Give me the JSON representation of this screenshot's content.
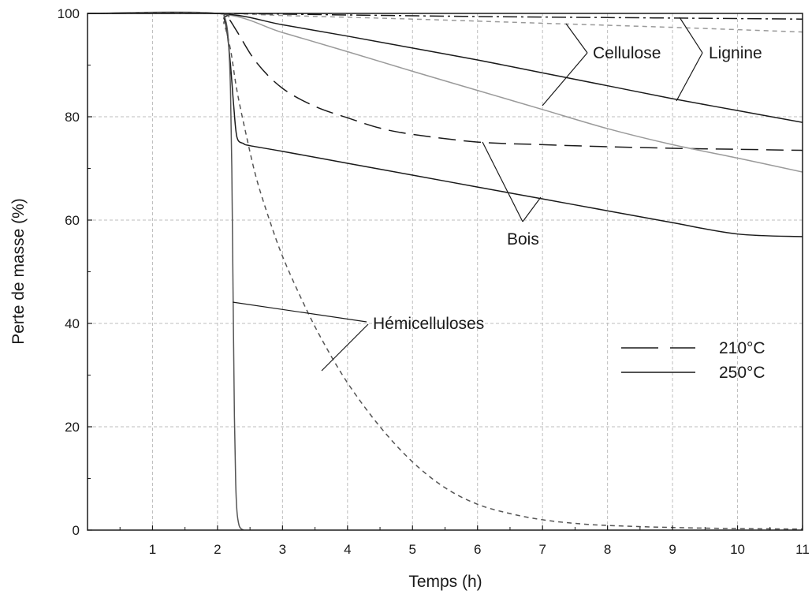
{
  "chart_data": {
    "type": "line",
    "title": "",
    "xlabel": "Temps (h)",
    "ylabel": "Perte de masse (%)",
    "xlim": [
      0,
      11
    ],
    "ylim": [
      0,
      100
    ],
    "xticks": [
      1,
      2,
      3,
      4,
      5,
      6,
      7,
      8,
      9,
      10,
      11
    ],
    "yticks": [
      0,
      20,
      40,
      60,
      80,
      100
    ],
    "grid": true,
    "legend": {
      "placement": "right",
      "entries": [
        {
          "label": "210°C",
          "style": "dashed"
        },
        {
          "label": "250°C",
          "style": "solid"
        }
      ]
    },
    "annotations": [
      "Cellulose",
      "Lignine",
      "Bois",
      "Hémicelluloses"
    ],
    "series": [
      {
        "group": "Bois",
        "temperature": "210°C",
        "color": "#1a1a1a",
        "dash": "long",
        "x": [
          0,
          2,
          2.15,
          2.3,
          2.6,
          3,
          3.5,
          4,
          4.5,
          5,
          6,
          7,
          8,
          9,
          10,
          11
        ],
        "y": [
          100,
          100,
          99.3,
          96.5,
          90.5,
          85.5,
          82,
          79.8,
          77.8,
          76.6,
          75.1,
          74.6,
          74.2,
          73.9,
          73.7,
          73.5
        ]
      },
      {
        "group": "Bois",
        "temperature": "250°C",
        "color": "#1a1a1a",
        "dash": "solid",
        "x": [
          0,
          2,
          2.1,
          2.15,
          2.2,
          2.25,
          2.3,
          2.4,
          2.5,
          3,
          4,
          5,
          6,
          7,
          8,
          9,
          10,
          11
        ],
        "y": [
          100,
          100,
          99,
          96,
          90,
          82,
          76,
          74.8,
          74.4,
          73.3,
          71,
          68.7,
          66.4,
          64.1,
          61.8,
          59.5,
          57.3,
          56.8
        ]
      },
      {
        "group": "Cellulose",
        "temperature": "210°C",
        "color": "#9a9a9a",
        "dash": "short",
        "x": [
          0,
          2,
          3,
          5,
          7,
          9,
          11
        ],
        "y": [
          100,
          100,
          99.6,
          98.9,
          98.1,
          97.3,
          96.4
        ]
      },
      {
        "group": "Cellulose",
        "temperature": "250°C",
        "color": "#9a9a9a",
        "dash": "solid",
        "x": [
          0,
          2,
          3,
          4,
          5,
          6,
          7,
          8,
          9,
          10,
          11
        ],
        "y": [
          100,
          100,
          96.3,
          92.6,
          88.8,
          85.1,
          81.4,
          77.7,
          74.6,
          72,
          69.3
        ]
      },
      {
        "group": "Lignine",
        "temperature": "210°C",
        "color": "#1a1a1a",
        "dash": "dashdot",
        "x": [
          0,
          2,
          4,
          6,
          8,
          10,
          11
        ],
        "y": [
          100,
          100,
          99.7,
          99.4,
          99.2,
          99,
          98.9
        ]
      },
      {
        "group": "Lignine",
        "temperature": "250°C",
        "color": "#1a1a1a",
        "dash": "solid",
        "x": [
          0,
          2,
          3,
          4,
          5,
          6,
          7,
          8,
          9,
          10,
          11
        ],
        "y": [
          100,
          100,
          97.8,
          95.6,
          93.3,
          91,
          88.5,
          86,
          83.5,
          81.2,
          78.9
        ]
      },
      {
        "group": "Hémicelluloses",
        "temperature": "210°C",
        "color": "#555555",
        "dash": "short",
        "x": [
          0,
          2,
          2.1,
          2.2,
          2.3,
          2.45,
          2.6,
          2.8,
          3,
          3.3,
          3.6,
          4,
          4.5,
          5,
          5.5,
          6,
          6.5,
          7,
          7.5,
          8,
          9,
          10,
          11
        ],
        "y": [
          100,
          100,
          98,
          93,
          85,
          76,
          68,
          60,
          53,
          44.5,
          37,
          28.5,
          20,
          13.2,
          8.2,
          5,
          3.2,
          2,
          1.3,
          0.9,
          0.5,
          0.3,
          0.2
        ]
      },
      {
        "group": "Hémicelluloses",
        "temperature": "250°C",
        "color": "#555555",
        "dash": "solid",
        "x": [
          0,
          2,
          2.1,
          2.15,
          2.18,
          2.2,
          2.22,
          2.24,
          2.26,
          2.28,
          2.3,
          2.33,
          2.36,
          2.4
        ],
        "y": [
          100,
          100,
          99.5,
          97,
          92,
          85,
          70,
          45,
          22,
          9,
          3.5,
          1,
          0.3,
          0
        ]
      }
    ]
  }
}
